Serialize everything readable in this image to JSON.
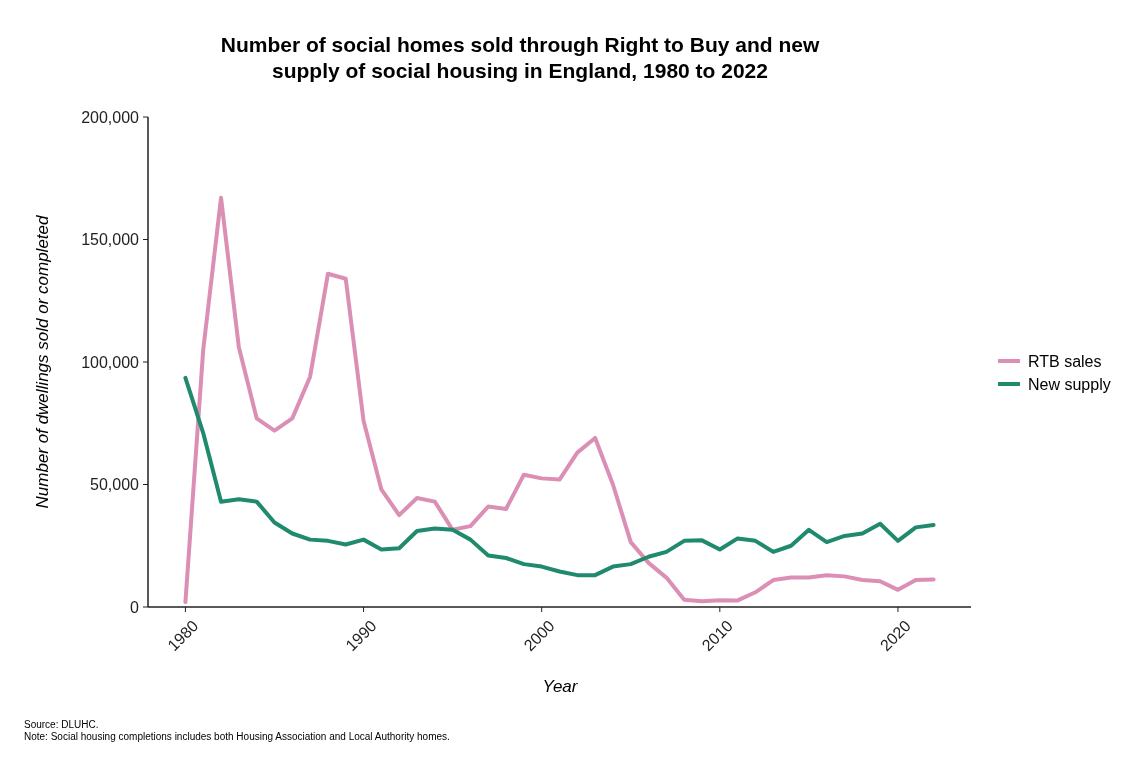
{
  "chart_data": {
    "type": "line",
    "title": "Number of social homes sold through Right to Buy and new supply of social housing in England, 1980 to 2022",
    "xlabel": "Year",
    "ylabel": "Number of dwellings sold or completed",
    "x": [
      1980,
      1981,
      1982,
      1983,
      1984,
      1985,
      1986,
      1987,
      1988,
      1989,
      1990,
      1991,
      1992,
      1993,
      1994,
      1995,
      1996,
      1997,
      1998,
      1999,
      2000,
      2001,
      2002,
      2003,
      2004,
      2005,
      2006,
      2007,
      2008,
      2009,
      2010,
      2011,
      2012,
      2013,
      2014,
      2015,
      2016,
      2017,
      2018,
      2019,
      2020,
      2021,
      2022
    ],
    "series": [
      {
        "name": "RTB sales",
        "color": "#dc8fb4",
        "values": [
          2000,
          105000,
          167000,
          106000,
          77000,
          72000,
          77000,
          94000,
          136000,
          134000,
          76000,
          48000,
          37500,
          44500,
          43000,
          31500,
          33000,
          41000,
          40000,
          54000,
          52500,
          52000,
          63000,
          69000,
          50000,
          26500,
          18000,
          12000,
          3000,
          2300,
          2800,
          2700,
          6000,
          11000,
          12000,
          12000,
          13000,
          12500,
          11000,
          10500,
          7000,
          11000,
          11200
        ]
      },
      {
        "name": "New supply",
        "color": "#1f8a6e",
        "values": [
          93500,
          71000,
          43000,
          44000,
          43000,
          34500,
          30000,
          27500,
          27000,
          25500,
          27500,
          23500,
          24000,
          31000,
          32000,
          31500,
          27500,
          21000,
          20000,
          17500,
          16500,
          14500,
          13000,
          13000,
          16500,
          17500,
          20500,
          22500,
          27000,
          27200,
          23500,
          28000,
          27000,
          22500,
          25000,
          31500,
          26500,
          29000,
          30000,
          34000,
          27000,
          32500,
          33500
        ]
      }
    ],
    "xlim": [
      1977.9,
      2024.1
    ],
    "xticks": [
      1980,
      1990,
      2000,
      2010,
      2020
    ],
    "ylim": [
      0,
      200000
    ],
    "yticks": [
      {
        "value": 0,
        "label": "0"
      },
      {
        "value": 50000,
        "label": "50,000"
      },
      {
        "value": 100000,
        "label": "100,000"
      },
      {
        "value": 150000,
        "label": "150,000"
      },
      {
        "value": 200000,
        "label": "200,000"
      }
    ],
    "grid": false,
    "legend": "right",
    "line_style": "solid",
    "marker": "none",
    "annotations": [
      "Source: DLUHC.",
      "Note: Social housing completions includes both Housing Association and Local Authority homes."
    ]
  }
}
